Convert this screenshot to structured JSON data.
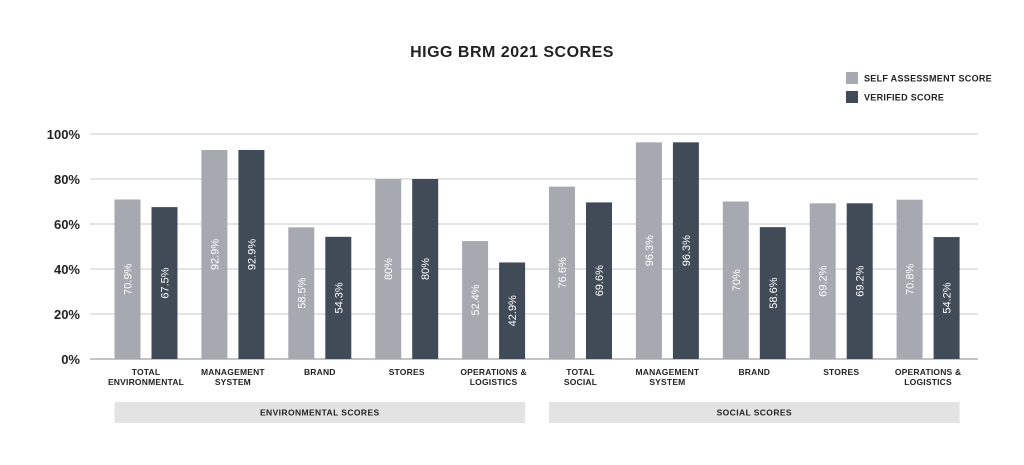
{
  "chart_data": {
    "type": "bar",
    "title": "HIGG BRM 2021 SCORES",
    "xlabel": "",
    "ylabel": "",
    "ylim": [
      0,
      100
    ],
    "yticks": [
      0,
      20,
      40,
      60,
      80,
      100
    ],
    "ytick_labels": [
      "0%",
      "20%",
      "40%",
      "60%",
      "80%",
      "100%"
    ],
    "grid": true,
    "legend_position": "top-right",
    "categories": [
      [
        "TOTAL",
        "ENVIRONMENTAL"
      ],
      [
        "MANAGEMENT",
        "SYSTEM"
      ],
      [
        "BRAND"
      ],
      [
        "STORES"
      ],
      [
        "OPERATIONS &",
        "LOGISTICS"
      ],
      [
        "TOTAL",
        "SOCIAL"
      ],
      [
        "MANAGEMENT",
        "SYSTEM"
      ],
      [
        "BRAND"
      ],
      [
        "STORES"
      ],
      [
        "OPERATIONS &",
        "LOGISTICS"
      ]
    ],
    "series": [
      {
        "name": "SELF ASSESSMENT SCORE",
        "color": "#a6aab0",
        "values": [
          70.9,
          92.9,
          58.5,
          80,
          52.4,
          76.6,
          96.3,
          70,
          69.2,
          70.8
        ],
        "labels": [
          "70.9%",
          "92.9%",
          "58.5%",
          "80%",
          "52.4%",
          "76.6%",
          "96.3%",
          "70%",
          "69.2%",
          "70.8%"
        ]
      },
      {
        "name": "VERIFIED SCORE",
        "color": "#414b57",
        "values": [
          67.5,
          92.9,
          54.3,
          80,
          42.9,
          69.6,
          96.3,
          58.6,
          69.2,
          54.2
        ],
        "labels": [
          "67.5%",
          "92.9%",
          "54.3%",
          "80%",
          "42.9%",
          "69.6%",
          "96.3%",
          "58.6%",
          "69.2%",
          "54.2%"
        ]
      }
    ],
    "groups": [
      {
        "label": "ENVIRONMENTAL SCORES",
        "from": 0,
        "to": 4
      },
      {
        "label": "SOCIAL SCORES",
        "from": 5,
        "to": 9
      }
    ],
    "colors": {
      "grid": "#c9c9c9",
      "axis": "#888888",
      "group_band": "#e3e3e3"
    }
  }
}
